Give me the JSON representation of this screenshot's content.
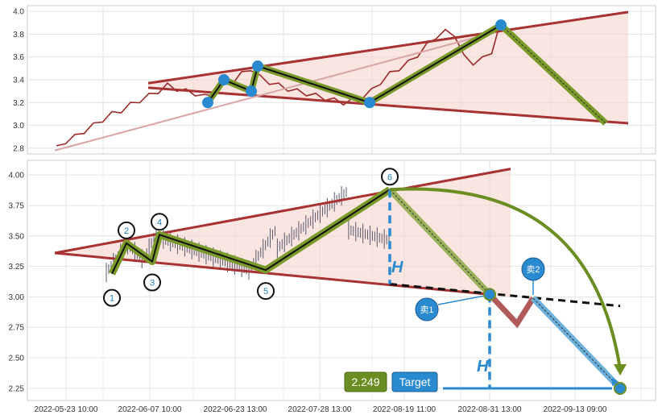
{
  "chart_data": [
    {
      "type": "line",
      "panel": "top",
      "ylim": [
        2.75,
        4.05
      ],
      "yticks": [
        "2.8",
        "3.0",
        "3.2",
        "3.4",
        "3.6",
        "3.8",
        "4.0"
      ],
      "grid": true,
      "series": [
        {
          "values": [
            2.8,
            2.86,
            2.9,
            2.95,
            3.0,
            3.05,
            3.1,
            3.13,
            3.18,
            3.22,
            3.26,
            3.3,
            3.35,
            3.32,
            3.3,
            3.28,
            3.25,
            3.28,
            3.35,
            3.38,
            3.45,
            3.5,
            3.42,
            3.38,
            3.35,
            3.32,
            3.3,
            3.28,
            3.26,
            3.24,
            3.22,
            3.2,
            3.22,
            3.25,
            3.3,
            3.38,
            3.45,
            3.5,
            3.55,
            3.62,
            3.7,
            3.78,
            3.82,
            3.8,
            3.6,
            3.55,
            3.58,
            3.65,
            3.9
          ]
        }
      ],
      "pattern_points": [
        3.2,
        3.4,
        3.3,
        3.52,
        3.2,
        3.88,
        3.02
      ]
    },
    {
      "type": "line",
      "panel": "bottom",
      "ylim": [
        2.15,
        4.12
      ],
      "yticks": [
        "2.25",
        "2.50",
        "2.75",
        "3.00",
        "3.25",
        "3.50",
        "3.75",
        "4.00"
      ],
      "xticks": [
        "2022-05-23 10:00",
        "2022-06-07 10:00",
        "2022-06-23 13:00",
        "2022-07-28 13:00",
        "2022-08-19 11:00",
        "2022-08-31 13:00",
        "2022-09-13 09:00"
      ],
      "grid": true,
      "pattern_points": [
        {
          "label": "1",
          "value": 3.19
        },
        {
          "label": "2",
          "value": 3.44
        },
        {
          "label": "3",
          "value": 3.29
        },
        {
          "label": "4",
          "value": 3.51
        },
        {
          "label": "5",
          "value": 3.22
        },
        {
          "label": "6",
          "value": 3.88
        }
      ],
      "sell_points": [
        {
          "label": "卖1",
          "value": 3.02
        },
        {
          "label": "卖2",
          "value": 2.99
        }
      ],
      "height_label": "H",
      "target": {
        "value_text": "2.249",
        "label": "Target",
        "value": 2.249
      }
    }
  ]
}
